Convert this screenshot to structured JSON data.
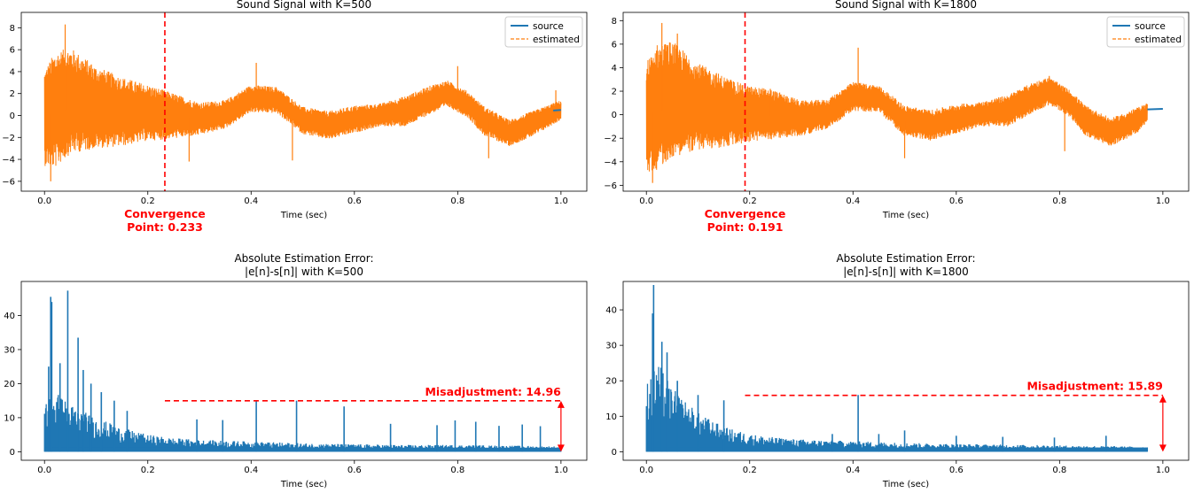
{
  "colors": {
    "source": "#1f77b4",
    "estimated": "#ff7f0e",
    "annotation": "#ff0000",
    "axis": "#000000"
  },
  "chart_data": [
    {
      "type": "line",
      "title": "Sound Signal with K=500",
      "xlabel": "Time (sec)",
      "ylabel": "",
      "xlim": [
        -0.045,
        1.05
      ],
      "ylim": [
        -6.9,
        9.4
      ],
      "xticks": [
        0.0,
        0.2,
        0.4,
        0.6,
        0.8,
        1.0
      ],
      "xtick_labels": [
        "0.0",
        "0.2",
        "0.4",
        "0.6",
        "0.8",
        "1.0"
      ],
      "yticks": [
        -6,
        -4,
        -2,
        0,
        2,
        4,
        6,
        8
      ],
      "ytick_labels": [
        "−6",
        "−4",
        "−2",
        "0",
        "2",
        "4",
        "6",
        "8"
      ],
      "legend_position": "top-right",
      "series": [
        {
          "name": "source",
          "style": "solid",
          "color": "#1f77b4"
        },
        {
          "name": "estimated",
          "style": "dashed",
          "color": "#ff7f0e"
        }
      ],
      "envelope": {
        "x": [
          0.0,
          0.02,
          0.05,
          0.1,
          0.15,
          0.2,
          0.233,
          0.3,
          0.35,
          0.4,
          0.45,
          0.5,
          0.55,
          0.6,
          0.65,
          0.7,
          0.75,
          0.78,
          0.82,
          0.85,
          0.9,
          0.95,
          1.0
        ],
        "upper": [
          4.2,
          5.8,
          6.2,
          4.5,
          3.5,
          2.8,
          2.3,
          1.2,
          1.4,
          2.8,
          2.6,
          0.8,
          0.4,
          0.9,
          1.1,
          1.8,
          2.8,
          3.2,
          2.2,
          0.9,
          -0.4,
          0.5,
          1.4
        ],
        "lower": [
          -4.6,
          -4.8,
          -3.5,
          -3.0,
          -2.8,
          -2.3,
          -2.2,
          -1.8,
          -1.2,
          0.3,
          0.2,
          -1.7,
          -2.2,
          -1.6,
          -1.0,
          -1.0,
          0.2,
          0.8,
          -0.2,
          -1.8,
          -2.8,
          -1.8,
          -0.4
        ]
      },
      "center": {
        "x": [
          0.0,
          0.05,
          0.1,
          0.2,
          0.3,
          0.35,
          0.42,
          0.5,
          0.55,
          0.6,
          0.65,
          0.7,
          0.78,
          0.85,
          0.9,
          0.95,
          1.0
        ],
        "y": [
          0.0,
          0.6,
          0.3,
          0.1,
          -0.3,
          0.0,
          1.6,
          -0.5,
          -0.8,
          -0.3,
          0.0,
          0.4,
          1.9,
          -0.2,
          -1.5,
          -1.0,
          0.5
        ]
      },
      "spikes": [
        {
          "x": 0.04,
          "y": 8.3
        },
        {
          "x": 0.012,
          "y": -6.0
        },
        {
          "x": 0.09,
          "y": 4.6
        },
        {
          "x": 0.41,
          "y": 4.8
        },
        {
          "x": 0.48,
          "y": -4.1
        },
        {
          "x": 0.28,
          "y": -4.2
        },
        {
          "x": 0.8,
          "y": 4.5
        },
        {
          "x": 0.86,
          "y": -3.9
        },
        {
          "x": 0.99,
          "y": 2.3
        }
      ],
      "convergence": {
        "x": 0.233,
        "label_line1": "Convergence",
        "label_line2": "Point: 0.233"
      }
    },
    {
      "type": "line",
      "title": "Sound Signal with K=1800",
      "xlabel": "Time (sec)",
      "ylabel": "",
      "xlim": [
        -0.045,
        1.05
      ],
      "ylim": [
        -6.5,
        8.7
      ],
      "xticks": [
        0.0,
        0.2,
        0.4,
        0.6,
        0.8,
        1.0
      ],
      "xtick_labels": [
        "0.0",
        "0.2",
        "0.4",
        "0.6",
        "0.8",
        "1.0"
      ],
      "yticks": [
        -6,
        -4,
        -2,
        0,
        2,
        4,
        6,
        8
      ],
      "ytick_labels": [
        "−6",
        "−4",
        "−2",
        "0",
        "2",
        "4",
        "6",
        "8"
      ],
      "legend_position": "top-right",
      "series": [
        {
          "name": "source",
          "style": "solid",
          "color": "#1f77b4"
        },
        {
          "name": "estimated",
          "style": "dashed",
          "color": "#ff7f0e"
        }
      ],
      "envelope": {
        "x": [
          0.0,
          0.02,
          0.05,
          0.1,
          0.15,
          0.191,
          0.24,
          0.3,
          0.35,
          0.4,
          0.45,
          0.5,
          0.55,
          0.6,
          0.65,
          0.7,
          0.75,
          0.78,
          0.82,
          0.85,
          0.9,
          0.95,
          0.97
        ],
        "upper": [
          4.5,
          6.0,
          6.3,
          4.4,
          3.3,
          2.5,
          2.2,
          1.2,
          1.3,
          2.8,
          2.5,
          0.8,
          0.4,
          0.9,
          1.1,
          1.7,
          2.8,
          3.2,
          2.1,
          0.8,
          -0.3,
          0.6,
          1.0
        ],
        "lower": [
          -5.0,
          -4.7,
          -3.6,
          -3.0,
          -2.8,
          -2.4,
          -2.1,
          -1.8,
          -1.2,
          0.3,
          0.2,
          -1.8,
          -2.2,
          -1.6,
          -1.0,
          -1.0,
          0.2,
          0.8,
          -0.2,
          -1.8,
          -2.7,
          -1.6,
          -0.6
        ]
      },
      "center": {
        "x": [
          0.0,
          0.05,
          0.1,
          0.191,
          0.3,
          0.35,
          0.42,
          0.5,
          0.55,
          0.6,
          0.65,
          0.7,
          0.78,
          0.85,
          0.9,
          0.95,
          0.97,
          1.0
        ],
        "y": [
          0.0,
          0.6,
          0.3,
          0.1,
          -0.3,
          0.0,
          1.6,
          -0.5,
          -0.8,
          -0.3,
          0.0,
          0.4,
          1.9,
          -0.2,
          -1.5,
          -0.8,
          0.3,
          0.5
        ]
      },
      "spikes": [
        {
          "x": 0.03,
          "y": 7.8
        },
        {
          "x": 0.012,
          "y": -5.8
        },
        {
          "x": 0.41,
          "y": 5.7
        },
        {
          "x": 0.24,
          "y": 2.2
        },
        {
          "x": 0.5,
          "y": -3.7
        },
        {
          "x": 0.81,
          "y": -3.1
        },
        {
          "x": 0.78,
          "y": 3.3
        },
        {
          "x": 0.06,
          "y": 6.9
        }
      ],
      "convergence": {
        "x": 0.191,
        "label_line1": "Convergence",
        "label_line2": "Point: 0.191"
      }
    },
    {
      "type": "bar",
      "title": "Absolute Estimation Error:",
      "subtitle": "|e[n]-s[n]| with K=500",
      "xlabel": "Time (sec)",
      "ylabel": "",
      "xlim": [
        -0.045,
        1.05
      ],
      "ylim": [
        -2.5,
        50
      ],
      "xticks": [
        0.0,
        0.2,
        0.4,
        0.6,
        0.8,
        1.0
      ],
      "xtick_labels": [
        "0.0",
        "0.2",
        "0.4",
        "0.6",
        "0.8",
        "1.0"
      ],
      "yticks": [
        0,
        10,
        20,
        30,
        40
      ],
      "ytick_labels": [
        "0",
        "10",
        "20",
        "30",
        "40"
      ],
      "envelope": {
        "x": [
          0.0,
          0.02,
          0.05,
          0.1,
          0.15,
          0.2,
          0.25,
          0.3,
          0.4,
          0.5,
          0.6,
          0.7,
          0.8,
          0.9,
          1.0
        ],
        "upper": [
          15,
          18,
          14,
          10,
          7,
          5,
          4,
          3.5,
          3,
          2.5,
          2.2,
          2,
          2,
          1.8,
          1.6
        ]
      },
      "spikes": [
        {
          "x": 0.012,
          "y": 45.5
        },
        {
          "x": 0.014,
          "y": 44
        },
        {
          "x": 0.045,
          "y": 47.3
        },
        {
          "x": 0.065,
          "y": 33.5
        },
        {
          "x": 0.03,
          "y": 26
        },
        {
          "x": 0.008,
          "y": 25
        },
        {
          "x": 0.075,
          "y": 24
        },
        {
          "x": 0.09,
          "y": 20
        },
        {
          "x": 0.11,
          "y": 17.5
        },
        {
          "x": 0.135,
          "y": 15
        },
        {
          "x": 0.16,
          "y": 12
        },
        {
          "x": 0.41,
          "y": 15
        },
        {
          "x": 0.488,
          "y": 15
        },
        {
          "x": 0.58,
          "y": 13.3
        },
        {
          "x": 0.295,
          "y": 9.5
        },
        {
          "x": 0.345,
          "y": 9.3
        },
        {
          "x": 0.67,
          "y": 8.2
        },
        {
          "x": 0.76,
          "y": 7.8
        },
        {
          "x": 0.795,
          "y": 9.2
        },
        {
          "x": 0.835,
          "y": 8.8
        },
        {
          "x": 0.88,
          "y": 7.6
        },
        {
          "x": 0.925,
          "y": 8.0
        },
        {
          "x": 0.96,
          "y": 7.5
        }
      ],
      "misadjustment": {
        "value": 14.96,
        "start_x": 0.233,
        "label": "Misadjustment: 14.96"
      }
    },
    {
      "type": "bar",
      "title": "Absolute Estimation Error:",
      "subtitle": "|e[n]-s[n]| with K=1800",
      "xlabel": "Time (sec)",
      "ylabel": "",
      "xlim": [
        -0.045,
        1.05
      ],
      "ylim": [
        -2.4,
        48
      ],
      "xticks": [
        0.0,
        0.2,
        0.4,
        0.6,
        0.8,
        1.0
      ],
      "xtick_labels": [
        "0.0",
        "0.2",
        "0.4",
        "0.6",
        "0.8",
        "1.0"
      ],
      "yticks": [
        0,
        10,
        20,
        30,
        40
      ],
      "ytick_labels": [
        "0",
        "10",
        "20",
        "30",
        "40"
      ],
      "envelope": {
        "x": [
          0.0,
          0.02,
          0.05,
          0.1,
          0.15,
          0.2,
          0.25,
          0.3,
          0.4,
          0.5,
          0.6,
          0.7,
          0.8,
          0.9,
          0.97
        ],
        "upper": [
          20,
          26,
          18,
          11,
          7,
          5,
          4,
          3.5,
          3,
          2.5,
          2.2,
          2,
          1.8,
          1.6,
          1.4
        ]
      },
      "spikes": [
        {
          "x": 0.014,
          "y": 47
        },
        {
          "x": 0.012,
          "y": 39
        },
        {
          "x": 0.03,
          "y": 31
        },
        {
          "x": 0.04,
          "y": 28
        },
        {
          "x": 0.06,
          "y": 20
        },
        {
          "x": 0.1,
          "y": 16
        },
        {
          "x": 0.15,
          "y": 14.5
        },
        {
          "x": 0.41,
          "y": 16
        },
        {
          "x": 0.36,
          "y": 5
        },
        {
          "x": 0.45,
          "y": 5
        },
        {
          "x": 0.5,
          "y": 6
        },
        {
          "x": 0.6,
          "y": 4.5
        },
        {
          "x": 0.69,
          "y": 4.2
        },
        {
          "x": 0.79,
          "y": 4.0
        },
        {
          "x": 0.89,
          "y": 4.5
        }
      ],
      "misadjustment": {
        "value": 15.89,
        "start_x": 0.191,
        "label": "Misadjustment: 15.89"
      }
    }
  ]
}
